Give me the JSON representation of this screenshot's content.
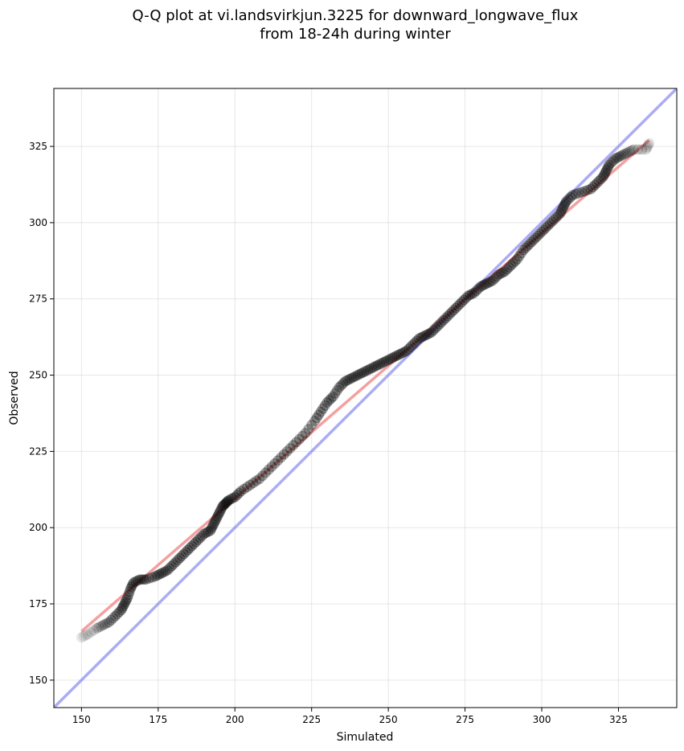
{
  "chart_data": {
    "type": "scatter",
    "title_line1": "Q-Q plot at vi.landsvirkjun.3225 for downward_longwave_flux",
    "title_line2": "from 18-24h during winter",
    "xlabel": "Simulated",
    "ylabel": "Observed",
    "xlim": [
      141,
      344
    ],
    "ylim": [
      141,
      344
    ],
    "x_ticks": [
      150,
      175,
      200,
      225,
      250,
      275,
      300,
      325
    ],
    "y_ticks": [
      150,
      175,
      200,
      225,
      250,
      275,
      300,
      325
    ],
    "grid": true,
    "points_color": "#000000",
    "fit_line_color": "#f08080",
    "identity_line_color": "#8080f0",
    "fit_line": [
      [
        150,
        166
      ],
      [
        335,
        327
      ]
    ],
    "identity_line": [
      [
        141,
        141
      ],
      [
        344,
        344
      ]
    ],
    "quantile_curve": [
      [
        150,
        164
      ],
      [
        152,
        165
      ],
      [
        155,
        167
      ],
      [
        157,
        168
      ],
      [
        159,
        169
      ],
      [
        161,
        171
      ],
      [
        163,
        173
      ],
      [
        164,
        175
      ],
      [
        165,
        177
      ],
      [
        166,
        180
      ],
      [
        167,
        182
      ],
      [
        169,
        183
      ],
      [
        171,
        183
      ],
      [
        174,
        184
      ],
      [
        176,
        185
      ],
      [
        178,
        186
      ],
      [
        180,
        188
      ],
      [
        182,
        190
      ],
      [
        184,
        192
      ],
      [
        186,
        194
      ],
      [
        188,
        196
      ],
      [
        190,
        198
      ],
      [
        192,
        199
      ],
      [
        193,
        201
      ],
      [
        194,
        203
      ],
      [
        195,
        205
      ],
      [
        196,
        207
      ],
      [
        197,
        208
      ],
      [
        198,
        209
      ],
      [
        200,
        210
      ],
      [
        202,
        212
      ],
      [
        205,
        214
      ],
      [
        208,
        216
      ],
      [
        211,
        219
      ],
      [
        214,
        222
      ],
      [
        217,
        225
      ],
      [
        220,
        228
      ],
      [
        223,
        231
      ],
      [
        226,
        235
      ],
      [
        228,
        238
      ],
      [
        230,
        241
      ],
      [
        232,
        243
      ],
      [
        234,
        246
      ],
      [
        236,
        248
      ],
      [
        238,
        249
      ],
      [
        240,
        250
      ],
      [
        242,
        251
      ],
      [
        244,
        252
      ],
      [
        246,
        253
      ],
      [
        248,
        254
      ],
      [
        250,
        255
      ],
      [
        252,
        256
      ],
      [
        254,
        257
      ],
      [
        256,
        258
      ],
      [
        258,
        260
      ],
      [
        260,
        262
      ],
      [
        262,
        263
      ],
      [
        264,
        264
      ],
      [
        266,
        266
      ],
      [
        268,
        268
      ],
      [
        270,
        270
      ],
      [
        272,
        272
      ],
      [
        274,
        274
      ],
      [
        276,
        276
      ],
      [
        278,
        277
      ],
      [
        280,
        279
      ],
      [
        282,
        280
      ],
      [
        284,
        281
      ],
      [
        286,
        283
      ],
      [
        288,
        284
      ],
      [
        290,
        286
      ],
      [
        292,
        288
      ],
      [
        294,
        291
      ],
      [
        296,
        293
      ],
      [
        298,
        295
      ],
      [
        300,
        297
      ],
      [
        302,
        299
      ],
      [
        304,
        301
      ],
      [
        306,
        303
      ],
      [
        307,
        305
      ],
      [
        308,
        307
      ],
      [
        310,
        309
      ],
      [
        313,
        310
      ],
      [
        316,
        311
      ],
      [
        318,
        313
      ],
      [
        320,
        315
      ],
      [
        321,
        317
      ],
      [
        322,
        319
      ],
      [
        324,
        321
      ],
      [
        326,
        322
      ],
      [
        328,
        323
      ],
      [
        330,
        324
      ],
      [
        334,
        324
      ],
      [
        335,
        326
      ]
    ]
  }
}
